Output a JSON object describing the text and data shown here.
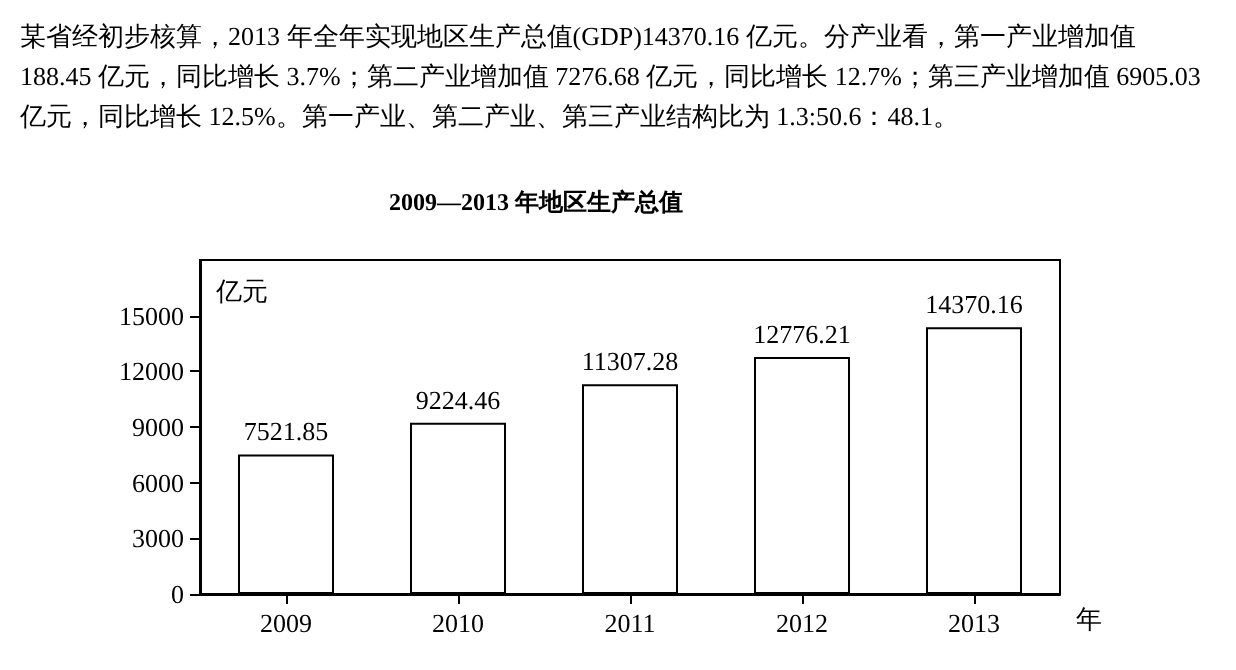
{
  "chart_data": {
    "type": "bar",
    "title": "2009—2013 年地区生产总值",
    "annotations": [
      "某省经初步核算，2013 年全年实现地区生产总值(GDP)14370.16 亿元。分产业看，第一产业增加值 188.45 亿元，同比增长 3.7%；第二产业增加值 7276.68 亿元，同比增长 12.7%；第三产业增加值 6905.03 亿元，同比增长 12.5%。第一产业、第二产业、第三产业结构比为 1.3:50.6：48.1。"
    ],
    "categories": [
      "2009",
      "2010",
      "2011",
      "2012",
      "2013"
    ],
    "values": [
      7521.85,
      9224.46,
      11307.28,
      12776.21,
      14370.16
    ],
    "color": "#ffffff",
    "data_labels": true,
    "xlabel": "年",
    "ylabel": "亿元",
    "ylim": [
      0,
      18000
    ],
    "yticks": [
      0,
      3000,
      6000,
      9000,
      12000,
      15000
    ],
    "grid": false
  }
}
